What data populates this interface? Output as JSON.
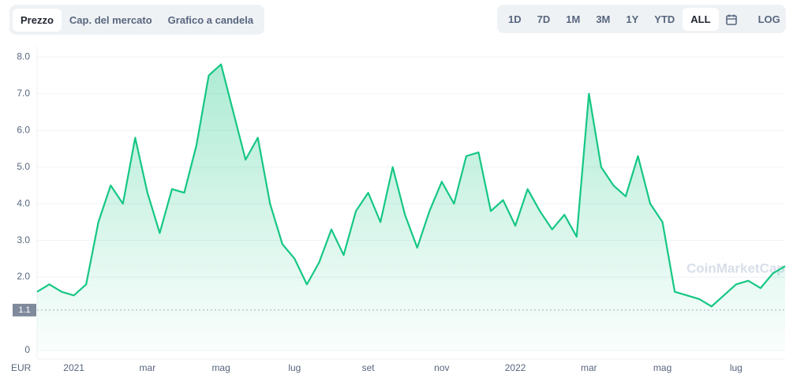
{
  "ui": {
    "tabs": [
      "Prezzo",
      "Cap. del mercato",
      "Grafico a candela"
    ],
    "active_tab": "Prezzo",
    "ranges": [
      "1D",
      "7D",
      "1M",
      "3M",
      "1Y",
      "YTD",
      "ALL"
    ],
    "active_range": "ALL",
    "log_button": "LOG"
  },
  "chart_data": {
    "type": "line",
    "color": "#16c784",
    "grid": true,
    "area": true,
    "categories": [
      null,
      null,
      null,
      "2021",
      null,
      null,
      null,
      null,
      null,
      "mar",
      null,
      null,
      null,
      null,
      null,
      "mag",
      null,
      null,
      null,
      null,
      null,
      "lug",
      null,
      null,
      null,
      null,
      null,
      "set",
      null,
      null,
      null,
      null,
      null,
      "nov",
      null,
      null,
      null,
      null,
      null,
      "2022",
      null,
      null,
      null,
      null,
      null,
      "mar",
      null,
      null,
      null,
      null,
      null,
      "mag",
      null,
      null,
      null,
      null,
      null,
      "lug",
      null,
      null,
      null,
      null
    ],
    "values": [
      1.6,
      1.8,
      1.6,
      1.5,
      1.8,
      3.5,
      4.5,
      4.0,
      5.8,
      4.3,
      3.2,
      4.4,
      4.3,
      5.6,
      7.5,
      7.8,
      6.5,
      5.2,
      5.8,
      4.0,
      2.9,
      2.5,
      1.8,
      2.4,
      3.3,
      2.6,
      3.8,
      4.3,
      3.5,
      5.0,
      3.7,
      2.8,
      3.8,
      4.6,
      4.0,
      5.3,
      5.4,
      3.8,
      4.1,
      3.4,
      4.4,
      3.8,
      3.3,
      3.7,
      3.1,
      7.0,
      5.0,
      4.5,
      4.2,
      5.3,
      4.0,
      3.5,
      1.6,
      1.5,
      1.4,
      1.2,
      1.5,
      1.8,
      1.9,
      1.7,
      2.1,
      2.3
    ],
    "ylim": [
      0,
      8.2
    ],
    "yticks": [
      0,
      {
        "value": 2,
        "label": "2.0"
      },
      {
        "value": 3,
        "label": "3.0"
      },
      {
        "value": 4,
        "label": "4.0"
      },
      {
        "value": 5,
        "label": "5.0"
      },
      {
        "value": 6,
        "label": "6.0"
      },
      {
        "value": 7,
        "label": "7.0"
      },
      {
        "value": 8,
        "label": "8.0"
      }
    ],
    "reference_line": {
      "value": 1.1,
      "label": "1.1"
    },
    "currency_label": "EUR",
    "watermark": "CoinMarketCap"
  }
}
